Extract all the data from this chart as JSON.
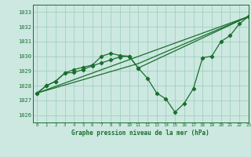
{
  "title": "Graphe pression niveau de la mer (hPa)",
  "background_color": "#cce8e0",
  "grid_color": "#99ccbb",
  "line_color": "#1a6e2e",
  "xlim": [
    -0.5,
    23
  ],
  "ylim": [
    1025.5,
    1033.5
  ],
  "yticks": [
    1026,
    1027,
    1028,
    1029,
    1030,
    1031,
    1032,
    1033
  ],
  "xticks": [
    0,
    1,
    2,
    3,
    4,
    5,
    6,
    7,
    8,
    9,
    10,
    11,
    12,
    13,
    14,
    15,
    16,
    17,
    18,
    19,
    20,
    21,
    22,
    23
  ],
  "series_main_x": [
    0,
    1,
    2,
    3,
    4,
    5,
    6,
    7,
    8,
    9,
    10,
    11,
    12,
    13,
    14,
    15,
    16,
    17,
    18,
    19,
    20,
    21,
    22,
    23
  ],
  "series_main_y": [
    1027.5,
    1028.0,
    1028.3,
    1028.85,
    1028.9,
    1029.1,
    1029.35,
    1029.55,
    1029.75,
    1029.95,
    1030.0,
    1029.2,
    1028.5,
    1027.5,
    1027.1,
    1026.2,
    1026.8,
    1027.8,
    1029.9,
    1030.0,
    1031.0,
    1031.4,
    1032.2,
    1032.7
  ],
  "series_upper_x": [
    0,
    1,
    2,
    3,
    4,
    5,
    6,
    7,
    8,
    9,
    10,
    11,
    23
  ],
  "series_upper_y": [
    1027.5,
    1028.0,
    1028.3,
    1028.85,
    1029.1,
    1029.25,
    1029.4,
    1030.0,
    1030.2,
    1030.05,
    1030.0,
    1029.2,
    1032.7
  ],
  "series_line1_x": [
    0,
    23
  ],
  "series_line1_y": [
    1027.5,
    1032.7
  ],
  "series_line2_x": [
    0,
    11,
    23
  ],
  "series_line2_y": [
    1027.5,
    1029.5,
    1032.7
  ]
}
